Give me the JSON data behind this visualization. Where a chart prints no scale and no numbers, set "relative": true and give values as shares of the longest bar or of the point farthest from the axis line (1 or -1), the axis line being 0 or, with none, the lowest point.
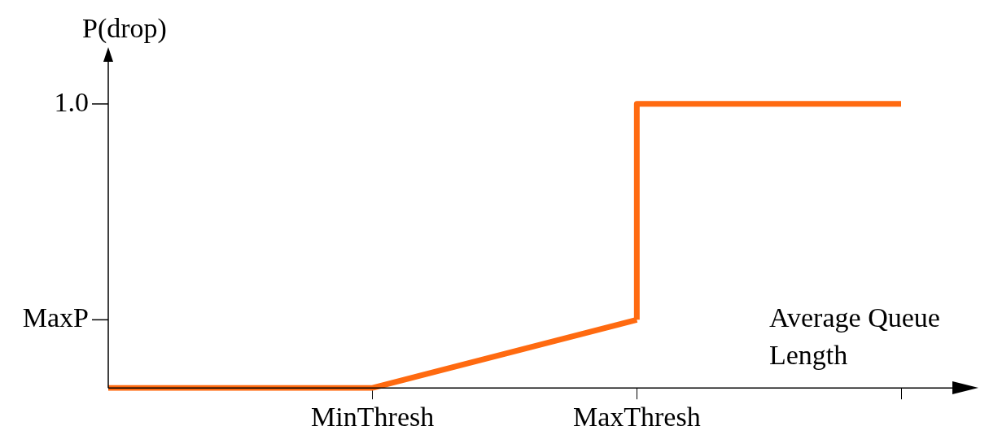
{
  "chart_data": {
    "type": "line",
    "relative": true,
    "ylabel": "P(drop)",
    "xlabel": "Average Queue Length",
    "categories": [
      null,
      "MinThresh",
      "MaxThresh",
      null
    ],
    "series": [
      {
        "color": "#ff6a10",
        "values": [
          0,
          0,
          0.24,
          null
        ]
      },
      {
        "type": "step",
        "color": "#ff6a10",
        "values": [
          null,
          null,
          0.24,
          1
        ]
      }
    ],
    "annotations": [
      "MaxP",
      "1.0"
    ],
    "marker": "none",
    "line_style": "solid"
  }
}
